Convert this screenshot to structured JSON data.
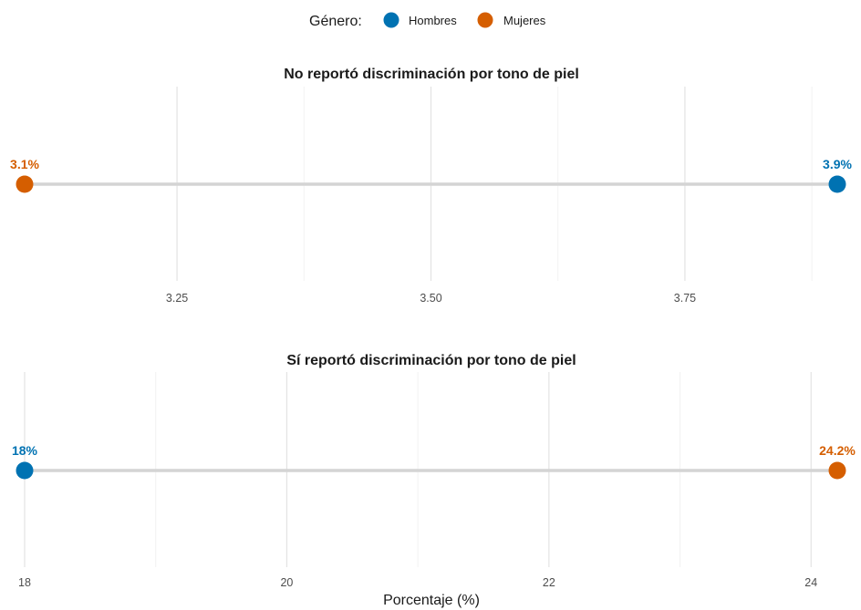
{
  "legend": {
    "title": "Género:",
    "items": [
      {
        "label": "Hombres",
        "color": "#0072B2"
      },
      {
        "label": "Mujeres",
        "color": "#D55E00"
      }
    ]
  },
  "x_axis_title": "Porcentaje (%)",
  "chart_data": [
    {
      "type": "dumbbell",
      "title": "No reportó discriminación por tono de piel",
      "xlim": [
        3.1,
        3.9
      ],
      "xticks": [
        3.25,
        3.5,
        3.75
      ],
      "xtick_labels": [
        "3.25",
        "3.50",
        "3.75"
      ],
      "minor_xticks": [
        3.375,
        3.625,
        3.875
      ],
      "grid": true,
      "series": [
        {
          "name": "Hombres",
          "value": 3.9,
          "label": "3.9%",
          "color": "#0072B2"
        },
        {
          "name": "Mujeres",
          "value": 3.1,
          "label": "3.1%",
          "color": "#D55E00"
        }
      ]
    },
    {
      "type": "dumbbell",
      "title": "Sí reportó discriminación por tono de piel",
      "xlim": [
        18,
        24.2
      ],
      "xticks": [
        18,
        20,
        22,
        24
      ],
      "xtick_labels": [
        "18",
        "20",
        "22",
        "24"
      ],
      "minor_xticks": [
        19,
        21,
        23
      ],
      "grid": true,
      "series": [
        {
          "name": "Hombres",
          "value": 18,
          "label": "18%",
          "color": "#0072B2"
        },
        {
          "name": "Mujeres",
          "value": 24.2,
          "label": "24.2%",
          "color": "#D55E00"
        }
      ]
    }
  ]
}
